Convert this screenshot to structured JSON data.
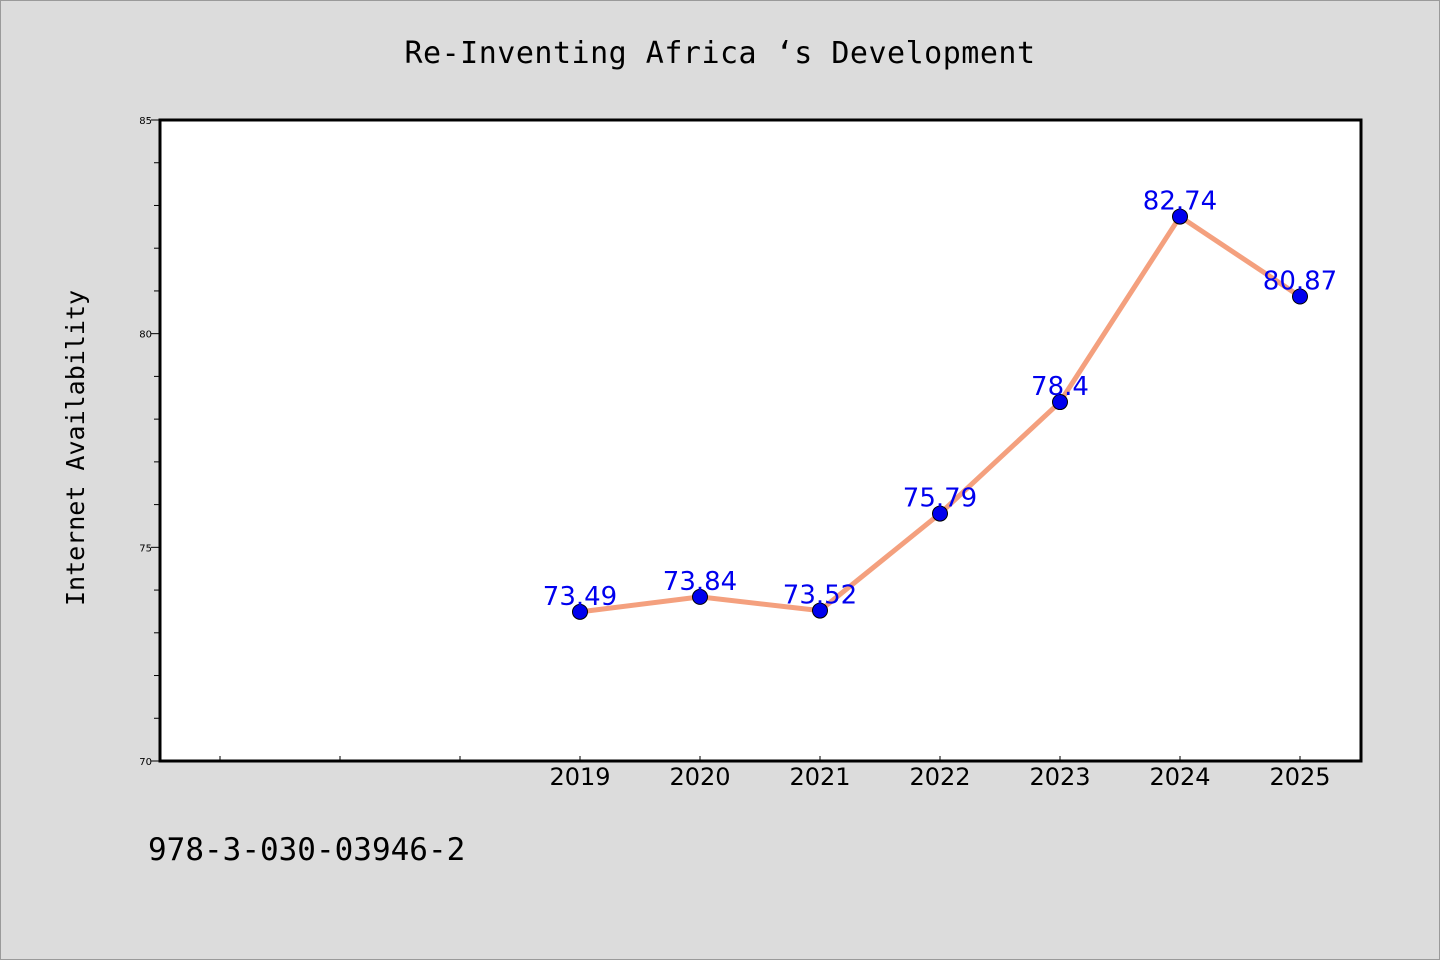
{
  "chart_data": {
    "type": "line",
    "title": "Re-Inventing Africa ‘s Development",
    "xlabel": "",
    "ylabel": "Internet Availability",
    "x_categories": [
      "",
      "",
      "",
      "2019",
      "2020",
      "2021",
      "2022",
      "2023",
      "2024",
      "2025"
    ],
    "x": [
      "2019",
      "2020",
      "2021",
      "2022",
      "2023",
      "2024",
      "2025"
    ],
    "series": [
      {
        "values": [
          73.49,
          73.84,
          73.52,
          75.79,
          78.4,
          82.74,
          80.87
        ]
      }
    ],
    "data_labels": [
      "73.49",
      "73.84",
      "73.52",
      "75.79",
      "78.4",
      "82.74",
      "80.87"
    ],
    "ylim": [
      70,
      85
    ],
    "y_major_ticks": [
      70,
      75,
      80,
      85
    ],
    "y_minor_step": 1,
    "grid": false,
    "line_color": "#f4a07e",
    "marker_color": "#0000ee",
    "label_color": "#0000ee"
  },
  "footer": {
    "text": "978-3-030-03946-2"
  }
}
